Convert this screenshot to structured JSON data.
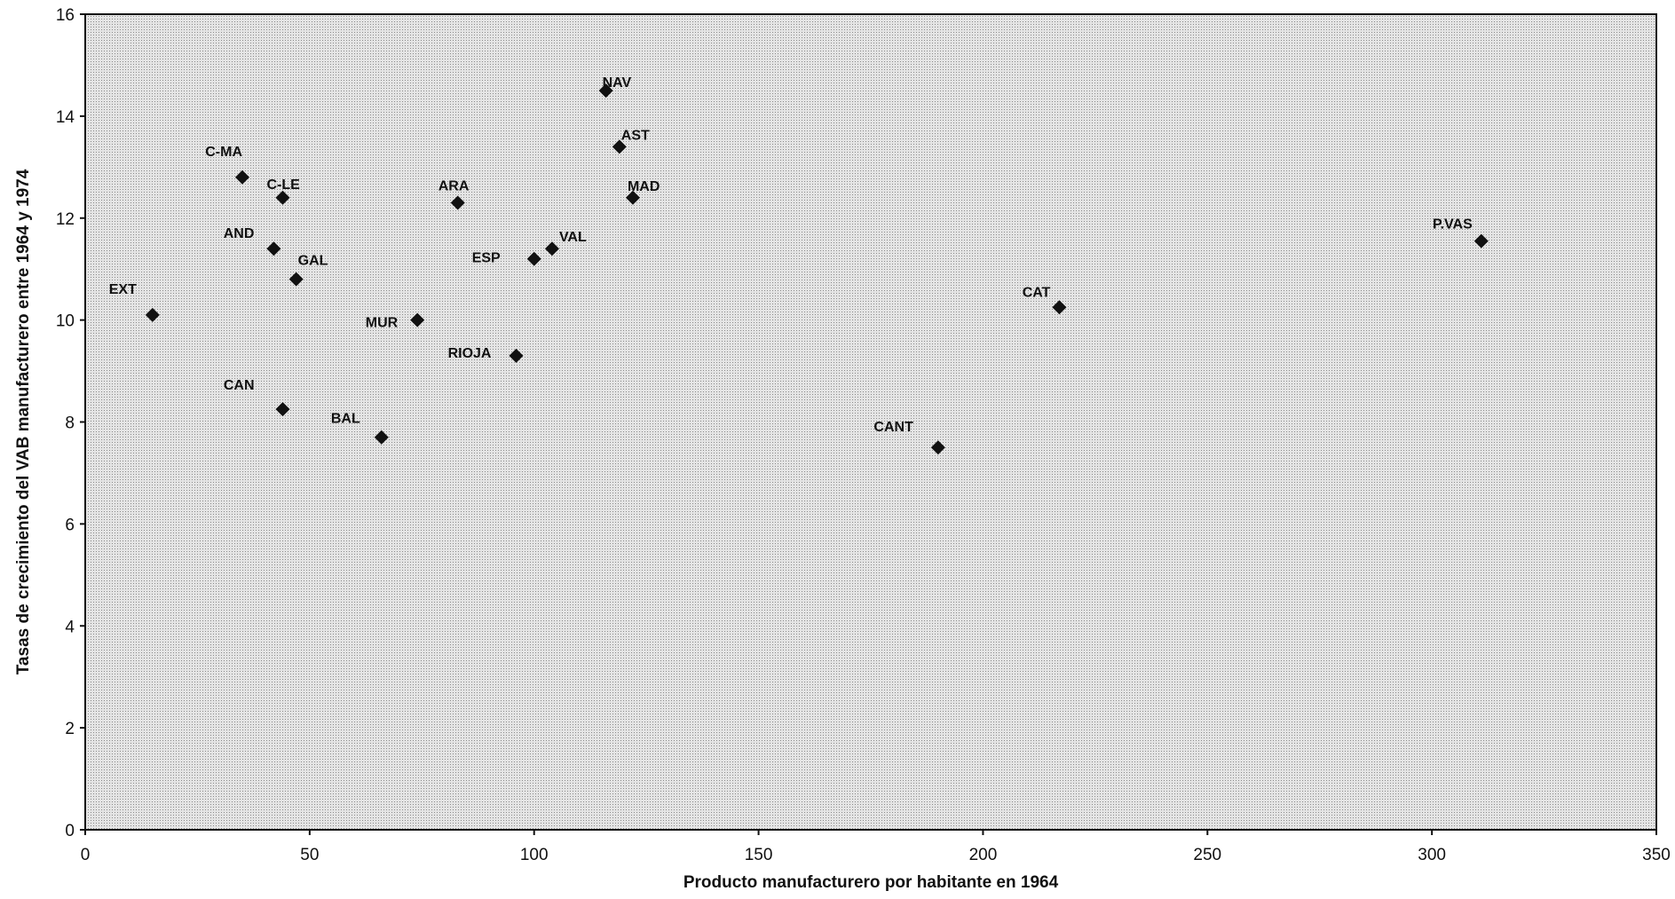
{
  "chart_data": {
    "type": "scatter",
    "title": "",
    "xlabel": "Producto manufacturero por habitante en 1964",
    "ylabel": "Tasas de crecimiento del VAB manufacturero entre 1964 y 1974",
    "xlim": [
      0,
      350
    ],
    "ylim": [
      0,
      16
    ],
    "x_ticks": [
      0,
      50,
      100,
      150,
      200,
      250,
      300,
      350
    ],
    "y_ticks": [
      0,
      2,
      4,
      6,
      8,
      10,
      12,
      14,
      16
    ],
    "grid": false,
    "legend": "none",
    "plot_background": "#dcdcdc",
    "marker_color": "#111111",
    "marker": "diamond",
    "points": [
      {
        "label": "EXT",
        "x": 15,
        "y": 10.1
      },
      {
        "label": "C-MA",
        "x": 35,
        "y": 12.8
      },
      {
        "label": "AND",
        "x": 42,
        "y": 11.4
      },
      {
        "label": "C-LE",
        "x": 44,
        "y": 12.4
      },
      {
        "label": "CAN",
        "x": 44,
        "y": 8.25
      },
      {
        "label": "GAL",
        "x": 47,
        "y": 10.8
      },
      {
        "label": "BAL",
        "x": 66,
        "y": 7.7
      },
      {
        "label": "MUR",
        "x": 74,
        "y": 10.0
      },
      {
        "label": "ARA",
        "x": 83,
        "y": 12.3
      },
      {
        "label": "RIOJA",
        "x": 96,
        "y": 9.3
      },
      {
        "label": "ESP",
        "x": 100,
        "y": 11.2
      },
      {
        "label": "VAL",
        "x": 104,
        "y": 11.4
      },
      {
        "label": "NAV",
        "x": 116,
        "y": 14.5
      },
      {
        "label": "AST",
        "x": 119,
        "y": 13.4
      },
      {
        "label": "MAD",
        "x": 122,
        "y": 12.4
      },
      {
        "label": "CANT",
        "x": 190,
        "y": 7.5
      },
      {
        "label": "CAT",
        "x": 217,
        "y": 10.25
      },
      {
        "label": "P.VAS",
        "x": 311,
        "y": 11.55
      }
    ]
  }
}
